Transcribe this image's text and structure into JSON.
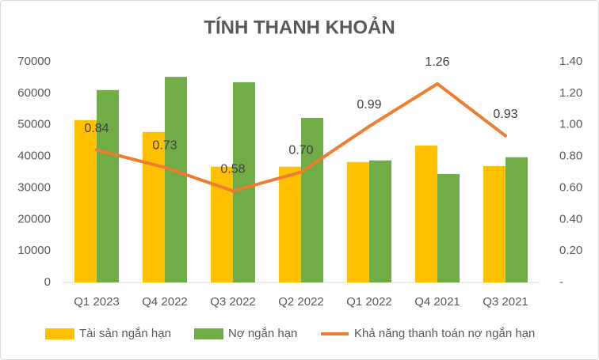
{
  "chart_data": {
    "type": "bar",
    "title": "TÍNH THANH KHOẢN",
    "categories": [
      "Q1 2023",
      "Q4 2022",
      "Q3 2022",
      "Q2 2022",
      "Q1 2022",
      "Q4 2021",
      "Q3 2021"
    ],
    "series": [
      {
        "name": "Tài sản ngắn hạn",
        "type": "bar",
        "color": "#FFC000",
        "values": [
          51500,
          47700,
          36700,
          36700,
          38200,
          43400,
          36900
        ]
      },
      {
        "name": "Nợ ngắn hạn",
        "type": "bar",
        "color": "#70AD47",
        "values": [
          61000,
          65200,
          63500,
          52200,
          38700,
          34400,
          39700
        ]
      },
      {
        "name": "Khả năng thanh toán nợ ngắn hạn",
        "type": "line",
        "axis": "y2",
        "color": "#ED7D31",
        "values": [
          0.84,
          0.73,
          0.58,
          0.7,
          0.99,
          1.26,
          0.93
        ],
        "value_labels": [
          "0.84",
          "0.73",
          "0.58",
          "0.70",
          "0.99",
          "1.26",
          "0.93"
        ]
      }
    ],
    "ylim": [
      0,
      70000
    ],
    "yticks": [
      0,
      10000,
      20000,
      30000,
      40000,
      50000,
      60000,
      70000
    ],
    "y2lim": [
      0,
      1.4
    ],
    "y2ticks": [
      {
        "value": 0,
        "label": "-"
      },
      {
        "value": 0.2,
        "label": "0.20"
      },
      {
        "value": 0.4,
        "label": "0.40"
      },
      {
        "value": 0.6,
        "label": "0.60"
      },
      {
        "value": 0.8,
        "label": "0.80"
      },
      {
        "value": 1.0,
        "label": "1.00"
      },
      {
        "value": 1.2,
        "label": "1.20"
      },
      {
        "value": 1.4,
        "label": "1.40"
      }
    ],
    "grid": false,
    "legend": "bottom"
  }
}
